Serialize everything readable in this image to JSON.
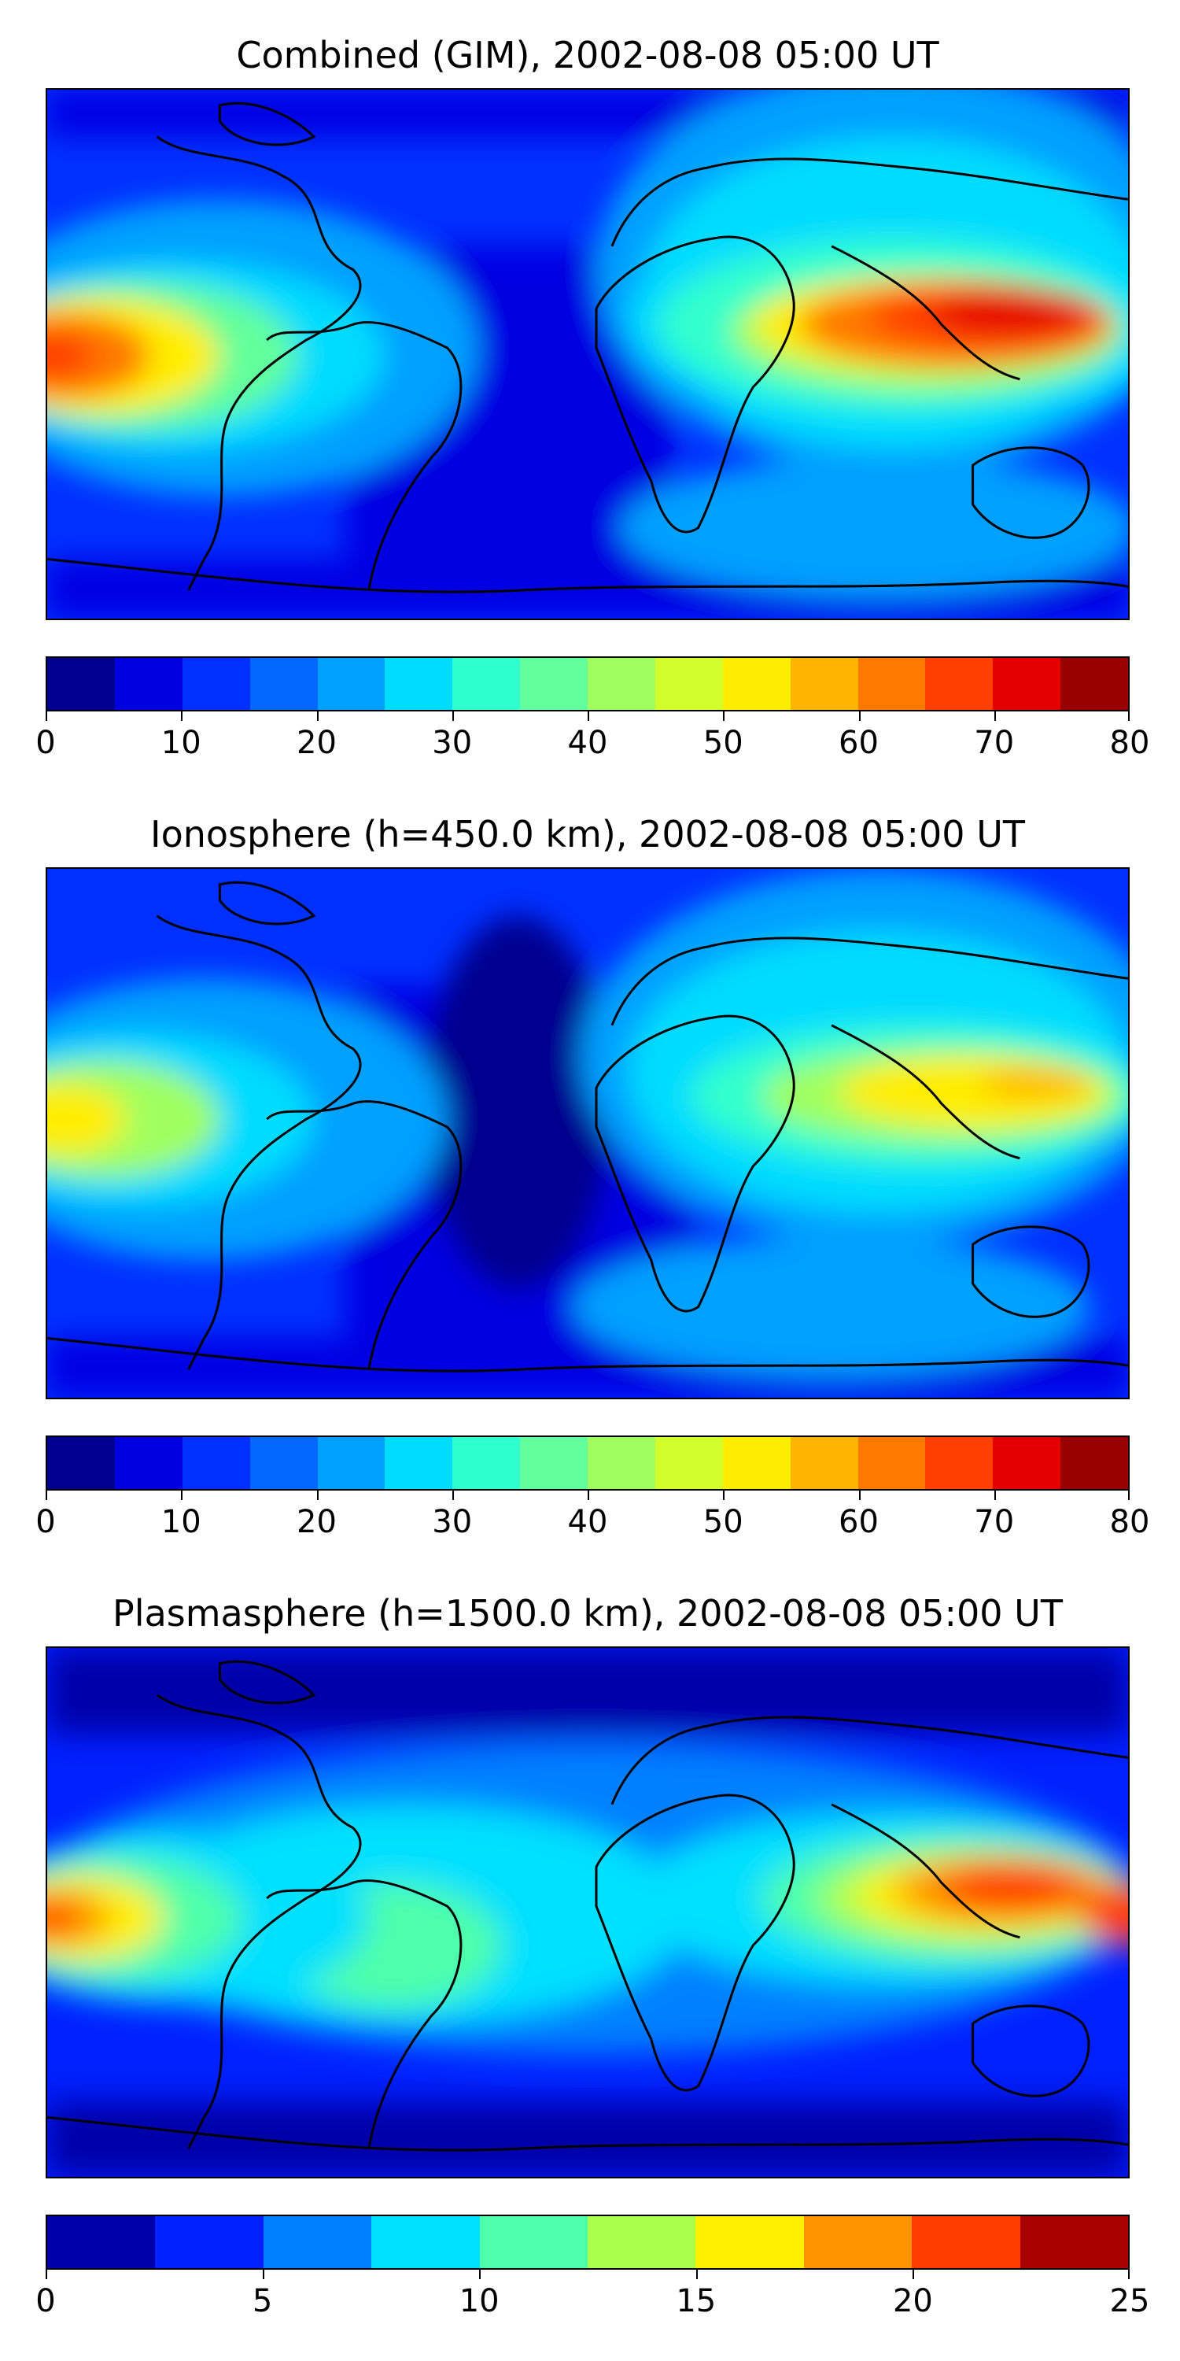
{
  "panels": [
    {
      "title": "Combined (GIM), 2002-08-08 05:00 UT",
      "colorbar": {
        "colors": [
          "#00008f",
          "#0000e1",
          "#0030ff",
          "#0068ff",
          "#00a0ff",
          "#00dcff",
          "#30ffce",
          "#62ff9c",
          "#a0ff5e",
          "#d2ff2c",
          "#ffed00",
          "#ffb400",
          "#ff7800",
          "#ff3f00",
          "#e40000",
          "#9a0000"
        ],
        "ticks": [
          "0",
          "10",
          "20",
          "30",
          "40",
          "50",
          "60",
          "70",
          "80"
        ],
        "range": [
          0,
          80
        ]
      }
    },
    {
      "title": "Ionosphere  (h=450.0 km), 2002-08-08 05:00 UT",
      "colorbar": {
        "colors": [
          "#00008f",
          "#0000e1",
          "#0030ff",
          "#0068ff",
          "#00a0ff",
          "#00dcff",
          "#30ffce",
          "#62ff9c",
          "#a0ff5e",
          "#d2ff2c",
          "#ffed00",
          "#ffb400",
          "#ff7800",
          "#ff3f00",
          "#e40000",
          "#9a0000"
        ],
        "ticks": [
          "0",
          "10",
          "20",
          "30",
          "40",
          "50",
          "60",
          "70",
          "80"
        ],
        "range": [
          0,
          80
        ]
      }
    },
    {
      "title": "Plasmasphere (h=1500.0 km), 2002-08-08 05:00 UT",
      "colorbar": {
        "colors": [
          "#0000a8",
          "#0020ff",
          "#0080ff",
          "#00e0ff",
          "#4dffaa",
          "#aaff4d",
          "#fff000",
          "#ff9400",
          "#ff3c00",
          "#a80000"
        ],
        "ticks": [
          "0",
          "5",
          "10",
          "15",
          "20",
          "25"
        ],
        "range": [
          0,
          25
        ]
      }
    }
  ]
}
